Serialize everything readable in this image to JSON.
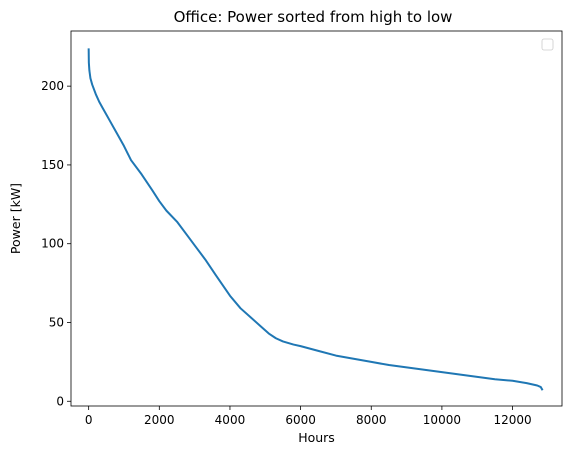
{
  "chart_data": {
    "type": "line",
    "title": "Office: Power sorted from high to low",
    "xlabel": "Hours",
    "ylabel": "Power [kW]",
    "xlim": [
      -500,
      13400
    ],
    "ylim": [
      -3,
      235
    ],
    "xticks": [
      0,
      2000,
      4000,
      6000,
      8000,
      10000,
      12000
    ],
    "yticks": [
      0,
      50,
      100,
      150,
      200
    ],
    "grid": false,
    "legend": {
      "location": "upper right",
      "entries": []
    },
    "series": [
      {
        "color": "#1f77b4",
        "x": [
          0,
          5,
          20,
          50,
          100,
          200,
          300,
          400,
          500,
          600,
          800,
          1000,
          1200,
          1500,
          1800,
          2000,
          2200,
          2500,
          2800,
          3000,
          3300,
          3600,
          4000,
          4300,
          4600,
          4900,
          5100,
          5300,
          5500,
          5800,
          6000,
          6500,
          7000,
          7500,
          8000,
          8500,
          9000,
          9500,
          10000,
          10500,
          11000,
          11500,
          12000,
          12400,
          12700,
          12800,
          12850
        ],
        "y": [
          224,
          215,
          210,
          205,
          201,
          195,
          190,
          186,
          182,
          178,
          170,
          162,
          153,
          144,
          134,
          127,
          121,
          114,
          105,
          99,
          90,
          80,
          67,
          59,
          53,
          47,
          43,
          40,
          38,
          36,
          35,
          32,
          29,
          27,
          25,
          23,
          21.5,
          20,
          18.5,
          17,
          15.5,
          14,
          13,
          11.5,
          10,
          9,
          7
        ]
      }
    ]
  }
}
